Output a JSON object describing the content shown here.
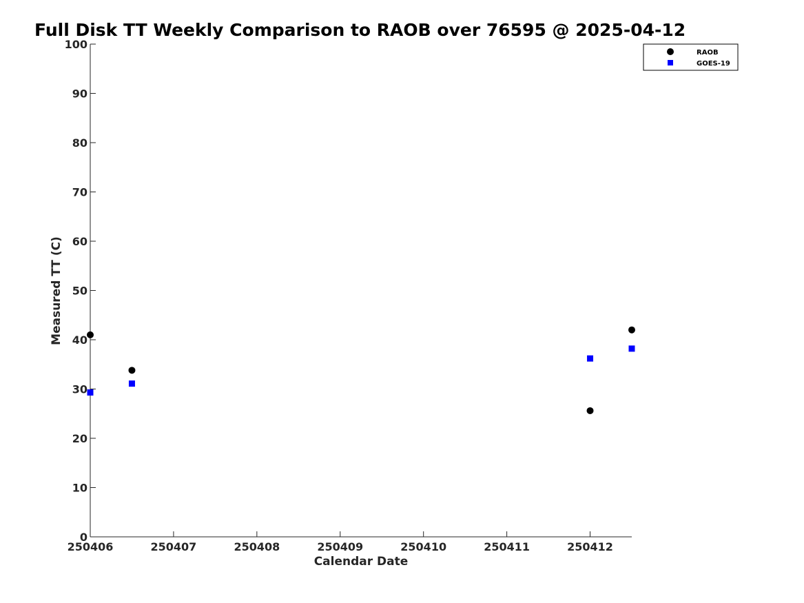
{
  "chart_data": {
    "type": "scatter",
    "title": "Full Disk TT Weekly Comparison to RAOB over 76595 @ 2025-04-12",
    "xlabel": "Calendar Date",
    "ylabel": "Measured TT (C)",
    "xlim": [
      250406,
      250412.5
    ],
    "ylim": [
      0,
      100
    ],
    "x_ticks": [
      250406,
      250407,
      250408,
      250409,
      250410,
      250411,
      250412
    ],
    "x_tick_labels": [
      "250406",
      "250407",
      "250408",
      "250409",
      "250410",
      "250411",
      "250412"
    ],
    "y_ticks": [
      0,
      10,
      20,
      30,
      40,
      50,
      60,
      70,
      80,
      90,
      100
    ],
    "y_tick_labels": [
      "0",
      "10",
      "20",
      "30",
      "40",
      "50",
      "60",
      "70",
      "80",
      "90",
      "100"
    ],
    "grid": false,
    "legend_position": "top-right",
    "series": [
      {
        "name": "RAOB",
        "marker": "circle",
        "color": "#000000",
        "x": [
          250406,
          250406.5,
          250412,
          250412.5
        ],
        "y": [
          41.0,
          33.8,
          25.6,
          42.0
        ]
      },
      {
        "name": "GOES-19",
        "marker": "square",
        "color": "#0000ff",
        "x": [
          250406,
          250406.5,
          250412,
          250412.5
        ],
        "y": [
          29.3,
          31.1,
          36.2,
          38.2
        ]
      }
    ]
  }
}
